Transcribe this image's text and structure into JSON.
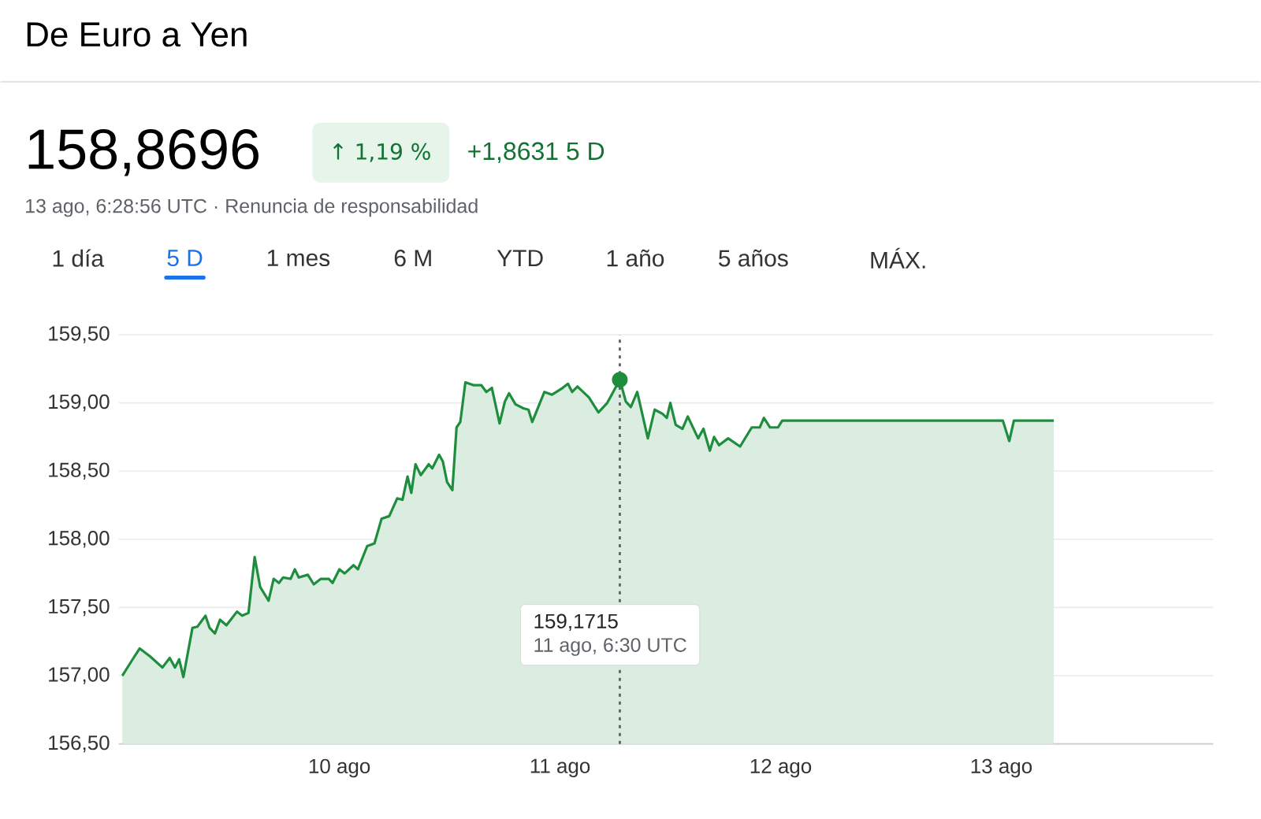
{
  "chart_data": {
    "type": "area",
    "title": "De Euro a Yen",
    "annotations": [
      "158,8696",
      "↑ 1,19 %",
      "+1,8631 5 D",
      "13 ago, 6:28:56 UTC · Renuncia de responsabilidad",
      "1 día",
      "5 D",
      "1 mes",
      "6 M",
      "YTD",
      "1 año",
      "5 años",
      "MÁX.",
      "159,1715",
      "11 ago, 6:30 UTC"
    ],
    "series": [
      {
        "color": "#1e8e3e",
        "x": [
          9.016,
          9.059,
          9.095,
          9.143,
          9.198,
          9.231,
          9.255,
          9.274,
          9.293,
          9.334,
          9.357,
          9.393,
          9.412,
          9.436,
          9.459,
          9.488,
          9.536,
          9.559,
          9.588,
          9.616,
          9.641,
          9.679,
          9.702,
          9.726,
          9.745,
          9.779,
          9.798,
          9.816,
          9.857,
          9.884,
          9.916,
          9.952,
          9.969,
          10.0,
          10.024,
          10.064,
          10.084,
          10.126,
          10.159,
          10.191,
          10.226,
          10.262,
          10.286,
          10.309,
          10.326,
          10.345,
          10.369,
          10.405,
          10.421,
          10.452,
          10.469,
          10.488,
          10.512,
          10.531,
          10.548,
          10.571,
          10.607,
          10.643,
          10.666,
          10.691,
          10.726,
          10.75,
          10.769,
          10.798,
          10.834,
          10.857,
          10.874,
          10.929,
          10.964,
          11.012,
          11.036,
          11.055,
          11.079,
          11.131,
          11.174,
          11.214,
          11.271,
          11.298,
          11.321,
          11.35,
          11.398,
          11.429,
          11.464,
          11.484,
          11.5,
          11.524,
          11.555,
          11.579,
          11.626,
          11.65,
          11.679,
          11.698,
          11.721,
          11.762,
          11.816,
          11.869,
          11.905,
          11.924,
          11.952,
          11.988,
          12.007,
          13.007,
          13.036,
          13.057,
          13.238
        ],
        "values": [
          157.0,
          157.11,
          157.2,
          157.14,
          157.06,
          157.13,
          157.06,
          157.12,
          156.99,
          157.35,
          157.36,
          157.44,
          157.35,
          157.31,
          157.41,
          157.37,
          157.47,
          157.44,
          157.46,
          157.87,
          157.65,
          157.55,
          157.71,
          157.68,
          157.72,
          157.71,
          157.78,
          157.72,
          157.74,
          157.67,
          157.71,
          157.71,
          157.68,
          157.78,
          157.75,
          157.81,
          157.78,
          157.95,
          157.97,
          158.15,
          158.17,
          158.3,
          158.29,
          158.46,
          158.34,
          158.55,
          158.47,
          158.55,
          158.52,
          158.62,
          158.57,
          158.42,
          158.36,
          158.82,
          158.86,
          159.15,
          159.13,
          159.13,
          159.08,
          159.11,
          158.85,
          159.01,
          159.07,
          158.99,
          158.96,
          158.95,
          158.86,
          159.08,
          159.06,
          159.11,
          159.14,
          159.08,
          159.12,
          159.04,
          158.93,
          159.0,
          159.17,
          159.01,
          158.97,
          159.08,
          158.74,
          158.95,
          158.92,
          158.89,
          159.0,
          158.84,
          158.81,
          158.9,
          158.74,
          158.81,
          158.65,
          158.75,
          158.69,
          158.74,
          158.68,
          158.82,
          158.82,
          158.89,
          158.82,
          158.82,
          158.87,
          158.87,
          158.72,
          158.87,
          158.87
        ]
      }
    ],
    "xlim": [
      9,
      13.96
    ],
    "xticks": [
      {
        "value": 10,
        "label": "10 ago"
      },
      {
        "value": 11,
        "label": "11 ago"
      },
      {
        "value": 12,
        "label": "12 ago"
      },
      {
        "value": 13,
        "label": "13 ago"
      }
    ],
    "ylim": [
      156.5,
      159.5
    ],
    "yticks": [
      {
        "value": 156.5,
        "label": "156,50"
      },
      {
        "value": 157,
        "label": "157,00"
      },
      {
        "value": 157.5,
        "label": "157,50"
      },
      {
        "value": 158,
        "label": "158,00"
      },
      {
        "value": 158.5,
        "label": "158,50"
      },
      {
        "value": 159,
        "label": "159,00"
      },
      {
        "value": 159.5,
        "label": "159,50"
      }
    ],
    "ref_lines": [
      {
        "axis": "x",
        "value": 11.271,
        "line_style": "dotted",
        "color": "#5f6368"
      }
    ],
    "grid": "y",
    "marker": "none",
    "line_style": "solid"
  }
}
